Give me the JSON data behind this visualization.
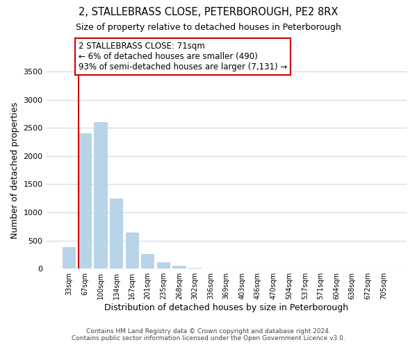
{
  "title": "2, STALLEBRASS CLOSE, PETERBOROUGH, PE2 8RX",
  "subtitle": "Size of property relative to detached houses in Peterborough",
  "xlabel": "Distribution of detached houses by size in Peterborough",
  "ylabel": "Number of detached properties",
  "bar_color": "#b8d4e8",
  "vline_color": "#cc0000",
  "categories": [
    "33sqm",
    "67sqm",
    "100sqm",
    "134sqm",
    "167sqm",
    "201sqm",
    "235sqm",
    "268sqm",
    "302sqm",
    "336sqm",
    "369sqm",
    "403sqm",
    "436sqm",
    "470sqm",
    "504sqm",
    "537sqm",
    "571sqm",
    "604sqm",
    "638sqm",
    "672sqm",
    "705sqm"
  ],
  "values": [
    390,
    2400,
    2600,
    1250,
    640,
    260,
    110,
    50,
    20,
    0,
    0,
    0,
    0,
    0,
    0,
    0,
    0,
    0,
    0,
    0,
    0
  ],
  "ylim": [
    0,
    3500
  ],
  "yticks": [
    0,
    500,
    1000,
    1500,
    2000,
    2500,
    3000,
    3500
  ],
  "annotation_title": "2 STALLEBRASS CLOSE: 71sqm",
  "annotation_line1": "← 6% of detached houses are smaller (490)",
  "annotation_line2": "93% of semi-detached houses are larger (7,131) →",
  "annotation_box_color": "#ffffff",
  "annotation_box_edge": "#cc0000",
  "footer1": "Contains HM Land Registry data © Crown copyright and database right 2024.",
  "footer2": "Contains public sector information licensed under the Open Government Licence v3.0.",
  "background_color": "#ffffff",
  "grid_color": "#ccd9e5"
}
